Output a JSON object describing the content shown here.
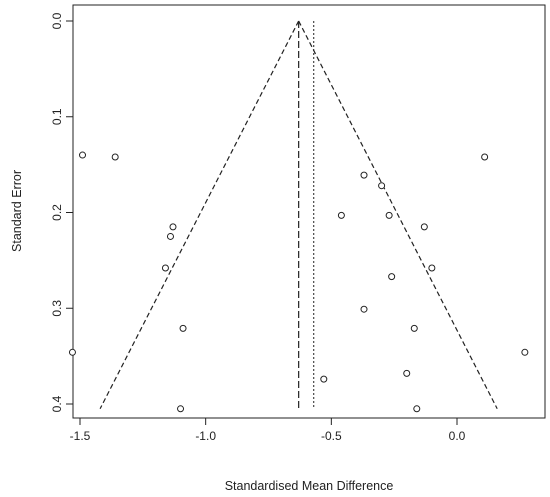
{
  "chart_data": {
    "type": "scatter",
    "subtype": "funnel-plot",
    "title": "",
    "xlabel": "Standardised Mean Difference",
    "ylabel": "Standard Error",
    "xlim": [
      -1.55,
      0.3
    ],
    "ylim": [
      0.0,
      0.405
    ],
    "y_reversed": true,
    "x_ticks": [
      -1.5,
      -1.0,
      -0.5,
      0.0
    ],
    "x_tick_labels": [
      "-1.5",
      "-1.0",
      "-0.5",
      "0.0"
    ],
    "y_ticks": [
      0.0,
      0.1,
      0.2,
      0.3,
      0.4
    ],
    "y_tick_labels": [
      "0.0",
      "0.1",
      "0.2",
      "0.3",
      "0.4"
    ],
    "grid": false,
    "reference_lines": {
      "fixed_effect_estimate": -0.63,
      "random_effects_estimate": -0.57,
      "funnel_apex": {
        "x": -0.63,
        "y": 0.0
      },
      "funnel_base": {
        "y": 0.405,
        "x_left": -1.42,
        "x_right": 0.16
      }
    },
    "points": [
      {
        "x": -1.49,
        "y": 0.14
      },
      {
        "x": -1.36,
        "y": 0.142
      },
      {
        "x": -1.13,
        "y": 0.215
      },
      {
        "x": -1.14,
        "y": 0.225
      },
      {
        "x": -1.16,
        "y": 0.258
      },
      {
        "x": -1.09,
        "y": 0.321
      },
      {
        "x": -1.53,
        "y": 0.346
      },
      {
        "x": -1.1,
        "y": 0.405
      },
      {
        "x": 0.11,
        "y": 0.142
      },
      {
        "x": -0.37,
        "y": 0.161
      },
      {
        "x": -0.3,
        "y": 0.172
      },
      {
        "x": -0.46,
        "y": 0.203
      },
      {
        "x": -0.27,
        "y": 0.203
      },
      {
        "x": -0.13,
        "y": 0.215
      },
      {
        "x": -0.1,
        "y": 0.258
      },
      {
        "x": -0.26,
        "y": 0.267
      },
      {
        "x": -0.37,
        "y": 0.301
      },
      {
        "x": -0.17,
        "y": 0.321
      },
      {
        "x": 0.27,
        "y": 0.346
      },
      {
        "x": -0.2,
        "y": 0.368
      },
      {
        "x": -0.53,
        "y": 0.374
      },
      {
        "x": -0.16,
        "y": 0.405
      }
    ]
  }
}
